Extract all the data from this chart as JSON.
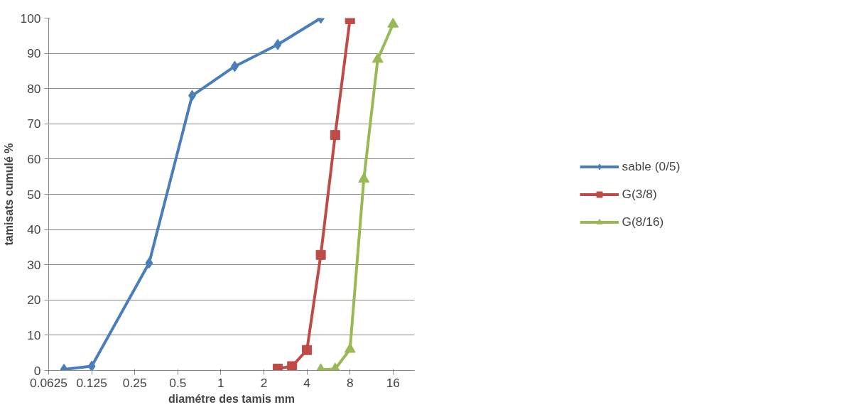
{
  "chart_data": {
    "type": "line",
    "xlabel": "diamétre des tamis mm",
    "ylabel": "tamisats cumulé %",
    "log": "x",
    "xlim": [
      0.0625,
      22.6
    ],
    "xticks": [
      0.0625,
      0.125,
      0.25,
      0.5,
      1,
      2,
      4,
      8,
      16
    ],
    "ylim": [
      0,
      100
    ],
    "yticks": [
      0,
      10,
      20,
      30,
      40,
      50,
      60,
      70,
      80,
      90,
      100
    ],
    "grid": "y",
    "legend": "right",
    "series": [
      {
        "name": "sable (0/5)",
        "color": "#4a7ebb",
        "marker": "diamond",
        "x": [
          0.08,
          0.125,
          0.315,
          0.63,
          1.25,
          2.5,
          5
        ],
        "values": [
          0.3,
          1.2,
          30.5,
          78,
          86.3,
          92.5,
          100
        ]
      },
      {
        "name": "G(3/8)",
        "color": "#be4b48",
        "marker": "square",
        "x": [
          2.5,
          3.15,
          4,
          5,
          6.3,
          8
        ],
        "values": [
          0.5,
          1.2,
          5.8,
          32.8,
          66.8,
          99.7
        ]
      },
      {
        "name": "G(8/16)",
        "color": "#98b954",
        "marker": "triangle",
        "x": [
          5,
          6.3,
          8,
          10,
          12.5,
          16
        ],
        "values": [
          0.2,
          0.4,
          6,
          54.3,
          88.3,
          98.3
        ]
      }
    ]
  }
}
